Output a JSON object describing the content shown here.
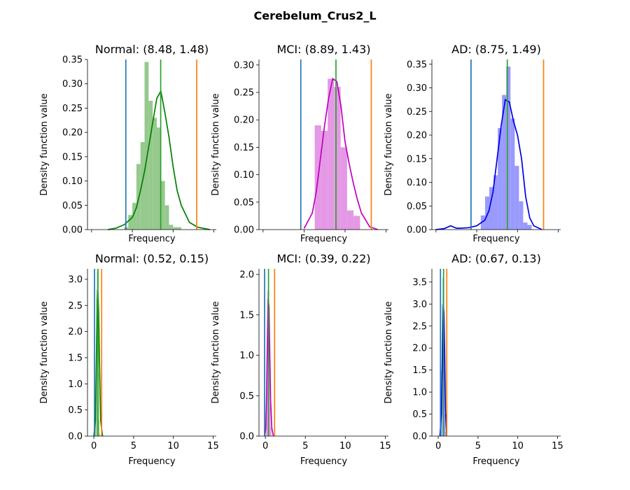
{
  "figure": {
    "suptitle": "Cerebelum_Crus2_L"
  },
  "colors": {
    "lower_line": "#1f77b4",
    "mean_line": "#2ca02c",
    "upper_line": "#ff7f0e"
  },
  "chart_data": [
    {
      "type": "histogram+kde",
      "title": "Normal: (8.48, 1.48)",
      "xlabel": "Frequency",
      "ylabel": "Density function value",
      "xlim": [
        -0.5,
        15.3
      ],
      "ylim": [
        0,
        0.35
      ],
      "xticks": [],
      "yticks": [
        "0.00",
        "0.05",
        "0.10",
        "0.15",
        "0.20",
        "0.25",
        "0.30",
        "0.35"
      ],
      "bins": {
        "start": 4.0,
        "width": 0.5,
        "density": [
          0.005,
          0.03,
          0.055,
          0.135,
          0.18,
          0.345,
          0.265,
          0.23,
          0.21,
          0.1,
          0.05,
          0.01,
          0.005,
          0.005
        ]
      },
      "kde_x": [
        2,
        3,
        4,
        5,
        5.5,
        6,
        6.5,
        7,
        7.5,
        8,
        8.5,
        9,
        9.5,
        10,
        10.5,
        11,
        12,
        13,
        14.5
      ],
      "kde_y": [
        0,
        0.003,
        0.01,
        0.025,
        0.045,
        0.08,
        0.12,
        0.17,
        0.22,
        0.27,
        0.285,
        0.24,
        0.19,
        0.13,
        0.08,
        0.05,
        0.015,
        0.005,
        0
      ],
      "vlines": [
        4.2,
        8.48,
        12.9
      ],
      "bar_color": "#96c98d",
      "kde_color": "#008000"
    },
    {
      "type": "histogram+kde",
      "title": "MCI: (8.89, 1.43)",
      "xlabel": "Frequency",
      "ylabel": "Density function value",
      "xlim": [
        -0.5,
        15.3
      ],
      "ylim": [
        0,
        0.31
      ],
      "xticks": [],
      "yticks": [
        "0.00",
        "0.05",
        "0.10",
        "0.15",
        "0.20",
        "0.25",
        "0.30"
      ],
      "bins": {
        "start": 6.3,
        "width": 0.79,
        "density": [
          0.19,
          0.18,
          0.275,
          0.26,
          0.15,
          0.035,
          0.025
        ]
      },
      "kde_x": [
        5,
        6,
        6.5,
        7,
        7.5,
        8,
        8.5,
        9,
        9.5,
        10,
        10.5,
        11,
        11.5,
        12,
        12.5,
        13,
        14
      ],
      "kde_y": [
        0.002,
        0.03,
        0.07,
        0.13,
        0.19,
        0.24,
        0.275,
        0.27,
        0.225,
        0.16,
        0.12,
        0.085,
        0.055,
        0.03,
        0.018,
        0.005,
        0
      ],
      "vlines": [
        4.6,
        8.89,
        13.2
      ],
      "bar_color": "#e598e5",
      "kde_color": "#bf00bf"
    },
    {
      "type": "histogram+kde",
      "title": "AD: (8.75, 1.49)",
      "xlabel": "Frequency",
      "ylabel": "Density function value",
      "xlim": [
        -0.5,
        15.3
      ],
      "ylim": [
        0,
        0.36
      ],
      "xticks": [],
      "yticks": [
        "0.00",
        "0.05",
        "0.10",
        "0.15",
        "0.20",
        "0.25",
        "0.30",
        "0.35"
      ],
      "bins": {
        "start": 5.5,
        "width": 0.52,
        "density": [
          0.03,
          0.07,
          0.09,
          0.115,
          0.215,
          0.285,
          0.345,
          0.235,
          0.135,
          0.06,
          0.015,
          0.01
        ]
      },
      "kde_x": [
        0,
        1,
        1.8,
        2.5,
        3,
        4,
        5,
        6,
        6.5,
        7,
        7.5,
        8,
        8.5,
        9,
        9.5,
        10,
        10.5,
        11,
        11.5,
        12,
        13
      ],
      "kde_y": [
        0,
        0.002,
        0.008,
        0.003,
        0.003,
        0.004,
        0.008,
        0.02,
        0.04,
        0.08,
        0.15,
        0.22,
        0.275,
        0.27,
        0.23,
        0.2,
        0.15,
        0.07,
        0.025,
        0.008,
        0
      ],
      "vlines": [
        4.3,
        8.75,
        13.2
      ],
      "bar_color": "#999afe",
      "kde_color": "#0000e5"
    },
    {
      "type": "histogram+kde",
      "title": "Normal: (0.52, 0.15)",
      "xlabel": "Frequency",
      "ylabel": "Density function value",
      "xlim": [
        -0.8,
        15.4
      ],
      "ylim": [
        0,
        3.2
      ],
      "xticks": [
        "0",
        "5",
        "10",
        "15"
      ],
      "yticks": [
        "0.0",
        "0.5",
        "1.0",
        "1.5",
        "2.0",
        "2.5",
        "3.0"
      ],
      "bins": {
        "start": 0.15,
        "width": 0.08,
        "density": [
          0.3,
          1.2,
          2.8,
          3.15,
          2.5,
          1.2,
          0.3,
          0.05
        ]
      },
      "kde_x": [
        0,
        0.2,
        0.35,
        0.45,
        0.52,
        0.6,
        0.7,
        0.85,
        1.1
      ],
      "kde_y": [
        0,
        0.3,
        1.8,
        2.6,
        2.75,
        2.4,
        1.5,
        0.3,
        0
      ],
      "vlines": [
        0.08,
        0.52,
        0.98
      ],
      "bar_color": "#96c98d",
      "kde_color": "#008000"
    },
    {
      "type": "histogram+kde",
      "title": "MCI: (0.39, 0.22)",
      "xlabel": "Frequency",
      "ylabel": "Density function value",
      "xlim": [
        -0.8,
        15.4
      ],
      "ylim": [
        0,
        2.07
      ],
      "xticks": [
        "0",
        "5",
        "10",
        "15"
      ],
      "yticks": [
        "0.0",
        "0.5",
        "1.0",
        "1.5",
        "2.0"
      ],
      "bins": {
        "start": 0.05,
        "width": 0.1,
        "density": [
          0.2,
          0.9,
          1.8,
          1.9,
          1.0,
          0.4,
          0.1
        ]
      },
      "kde_x": [
        -0.1,
        0.05,
        0.15,
        0.25,
        0.35,
        0.45,
        0.55,
        0.65,
        0.8,
        1.0
      ],
      "kde_y": [
        0,
        0.1,
        0.5,
        1.2,
        1.7,
        1.6,
        1.0,
        0.45,
        0.1,
        0
      ],
      "vlines": [
        -0.1,
        0.39,
        1.15
      ],
      "bar_color": "#e598e5",
      "kde_color": "#bf00bf"
    },
    {
      "type": "histogram+kde",
      "title": "AD: (0.67, 0.13)",
      "xlabel": "Frequency",
      "ylabel": "Density function value",
      "xlim": [
        -0.8,
        15.4
      ],
      "ylim": [
        0,
        3.8
      ],
      "xticks": [
        "0",
        "5",
        "10",
        "15"
      ],
      "yticks": [
        "0.0",
        "0.5",
        "1.0",
        "1.5",
        "2.0",
        "2.5",
        "3.0",
        "3.5"
      ],
      "bins": {
        "start": 0.3,
        "width": 0.08,
        "density": [
          0.3,
          1.5,
          3.0,
          3.6,
          3.0,
          1.8,
          0.5,
          0.1
        ]
      },
      "kde_x": [
        0.2,
        0.4,
        0.55,
        0.65,
        0.72,
        0.8,
        0.9,
        1.05
      ],
      "kde_y": [
        0,
        0.5,
        2.2,
        2.95,
        2.8,
        2.0,
        0.6,
        0
      ],
      "vlines": [
        0.28,
        0.67,
        1.07
      ],
      "bar_color": "#999afe",
      "kde_color": "#0000e5"
    }
  ]
}
